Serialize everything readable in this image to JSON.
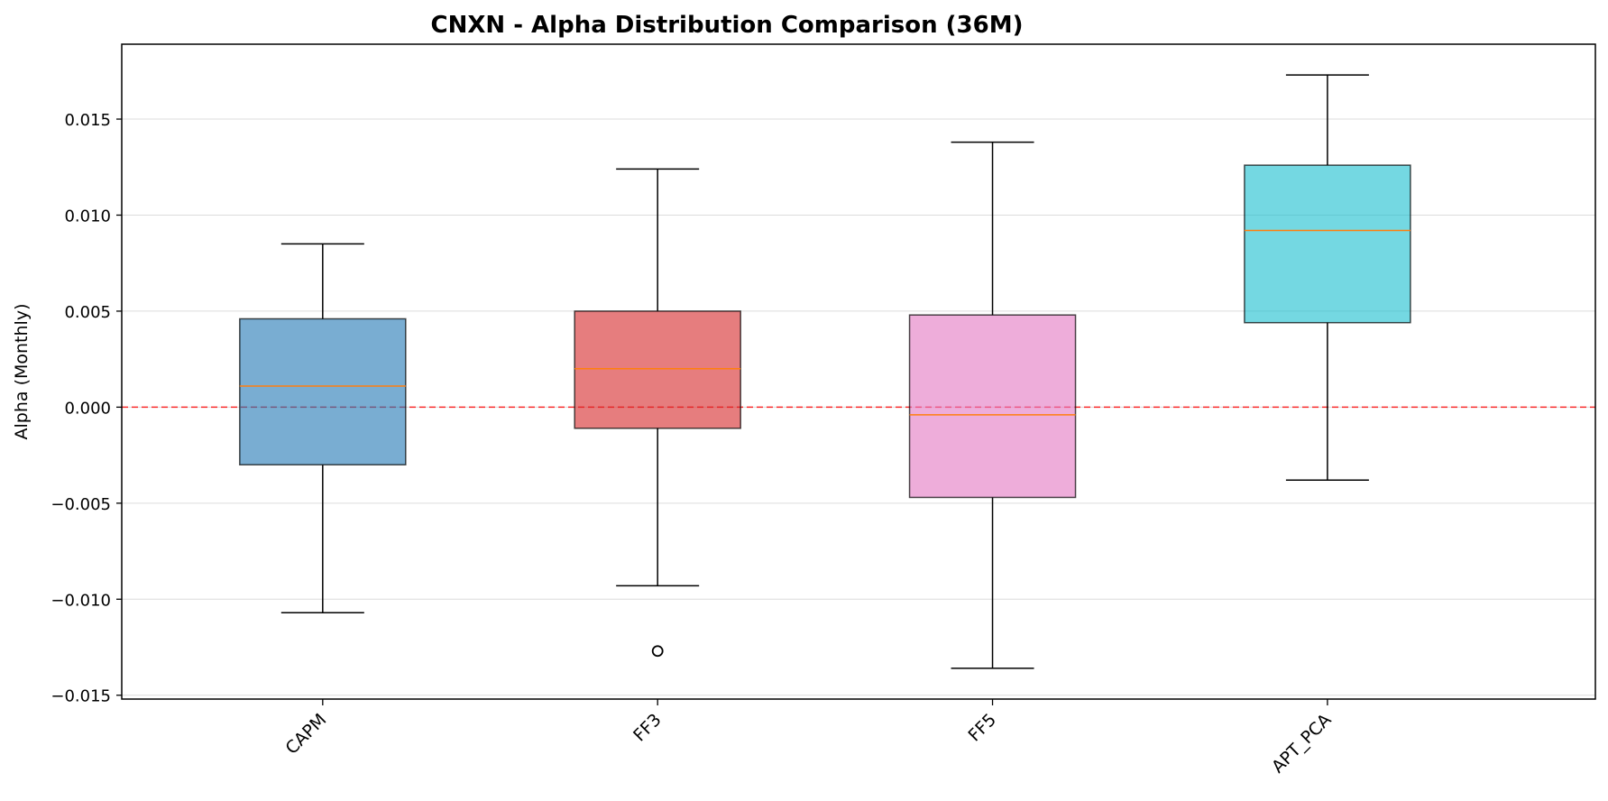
{
  "chart_data": {
    "type": "box",
    "title": "CNXN - Alpha Distribution Comparison (36M)",
    "xlabel": "",
    "ylabel": "Alpha (Monthly)",
    "ylim": [
      -0.0152,
      0.0189
    ],
    "yticks": [
      -0.015,
      -0.01,
      -0.005,
      0.0,
      0.005,
      0.01,
      0.015
    ],
    "ytick_labels": [
      "−0.015",
      "−0.010",
      "−0.005",
      "0.000",
      "0.005",
      "0.010",
      "0.015"
    ],
    "grid": "horizontal",
    "reference_line": {
      "y": 0.0,
      "color": "#ff0000",
      "style": "dashed"
    },
    "median_color": "#ff7f0e",
    "categories": [
      "CAPM",
      "FF3",
      "FF5",
      "APT_PCA"
    ],
    "boxes": [
      {
        "name": "CAPM",
        "whisker_low": -0.0107,
        "q1": -0.003,
        "median": 0.0011,
        "q3": 0.0046,
        "whisker_high": 0.0085,
        "outliers": [],
        "color": "#1f77b4"
      },
      {
        "name": "FF3",
        "whisker_low": -0.0093,
        "q1": -0.0011,
        "median": 0.002,
        "q3": 0.005,
        "whisker_high": 0.0124,
        "outliers": [
          -0.0127
        ],
        "color": "#d62728"
      },
      {
        "name": "FF5",
        "whisker_low": -0.0136,
        "q1": -0.0047,
        "median": -0.0004,
        "q3": 0.0048,
        "whisker_high": 0.0138,
        "outliers": [],
        "color": "#e377c2"
      },
      {
        "name": "APT_PCA",
        "whisker_low": -0.0038,
        "q1": 0.0044,
        "median": 0.0092,
        "q3": 0.0126,
        "whisker_high": 0.0173,
        "outliers": [],
        "color": "#17becf"
      }
    ]
  }
}
